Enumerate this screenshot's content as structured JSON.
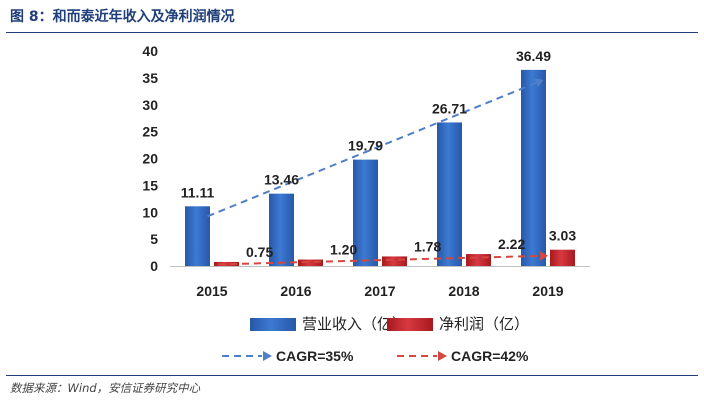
{
  "figure_title": "图 8：和而泰近年收入及净利润情况",
  "source_note": "数据来源：Wind，安信证券研究中心",
  "chart_data": {
    "type": "bar",
    "categories": [
      "2015",
      "2016",
      "2017",
      "2018",
      "2019"
    ],
    "ylim": [
      0,
      40
    ],
    "yticks": [
      0,
      5,
      10,
      15,
      20,
      25,
      30,
      35,
      40
    ],
    "grid": false,
    "legend_placement": "bottom",
    "series": [
      {
        "name": "营业收入（亿）",
        "values": [
          11.11,
          13.46,
          19.79,
          26.71,
          36.49
        ],
        "labels": [
          "11.11",
          "13.46",
          "19.79",
          "26.71",
          "36.49"
        ],
        "color": "#2f66be"
      },
      {
        "name": "净利润（亿）",
        "values": [
          0.75,
          1.2,
          1.78,
          2.22,
          3.03
        ],
        "labels": [
          "0.75",
          "1.20",
          "1.78",
          "2.22",
          "3.03"
        ],
        "color": "#c0272d"
      }
    ],
    "trendlines": [
      {
        "name": "CAGR=35%",
        "series": "营业收入（亿）",
        "color": "#4f7fc9",
        "style": "dashed-arrow"
      },
      {
        "name": "CAGR=42%",
        "series": "净利润（亿）",
        "color": "#d6473f",
        "style": "dashed-arrow"
      }
    ]
  }
}
